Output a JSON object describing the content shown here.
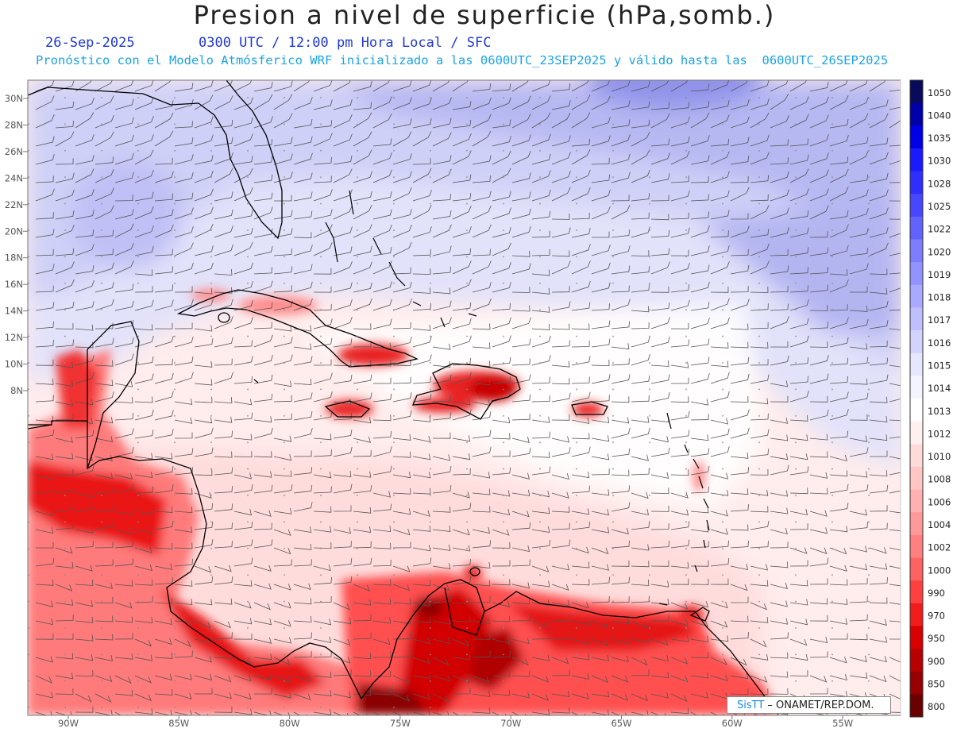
{
  "title": "Presion a nivel de superficie (hPa,somb.)",
  "date": "26-Sep-2025",
  "valid_time": "0300 UTC / 12:00 pm Hora Local / SFC",
  "forecast_note": "Pronóstico con el Modelo Atmósferico WRF inicializado a las 0600UTC_23SEP2025 y válido hasta las  0600UTC_26SEP2025",
  "credit": {
    "sis": "SisTT",
    "org": " – ONAMET/REP.DOM."
  },
  "lat_labels": [
    "30N",
    "28N",
    "26N",
    "24N",
    "22N",
    "20N",
    "18N",
    "16N",
    "14N",
    "12N",
    "10N",
    "8N"
  ],
  "lon_labels": [
    "90W",
    "85W",
    "80W",
    "75W",
    "70W",
    "65W",
    "60W",
    "55W"
  ],
  "colorbar": {
    "levels": [
      "1050",
      "1040",
      "1035",
      "1030",
      "1028",
      "1025",
      "1022",
      "1020",
      "1019",
      "1018",
      "1017",
      "1016",
      "1015",
      "1014",
      "1013",
      "1012",
      "1010",
      "1008",
      "1006",
      "1004",
      "1002",
      "1000",
      "990",
      "970",
      "950",
      "900",
      "850",
      "800"
    ],
    "colors": [
      "#0a0a5c",
      "#0000a8",
      "#0000e6",
      "#1a1aff",
      "#2e2eff",
      "#4747ff",
      "#6262ff",
      "#7d7dff",
      "#9393ff",
      "#a9a9ff",
      "#bfbfff",
      "#d3d3ff",
      "#e6e6ff",
      "#f4f4ff",
      "#ffffff",
      "#fff0f0",
      "#ffdada",
      "#ffc6c6",
      "#ffb0b0",
      "#ff9898",
      "#ff8080",
      "#ff6262",
      "#ff4040",
      "#f21c1c",
      "#d80000",
      "#b80000",
      "#960000",
      "#6a0000"
    ]
  }
}
